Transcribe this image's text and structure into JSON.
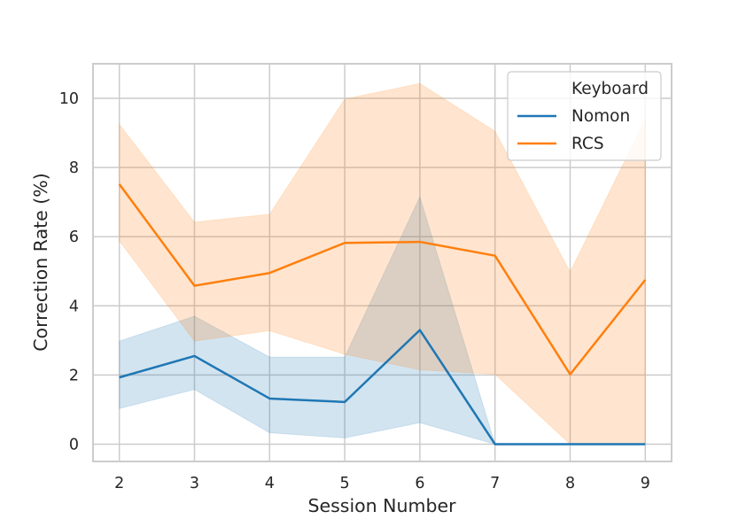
{
  "chart_data": {
    "type": "line",
    "title": "",
    "xlabel": "Session Number",
    "ylabel": "Correction Rate (%)",
    "x": [
      2,
      3,
      4,
      5,
      6,
      7,
      8,
      9
    ],
    "x_ticks": [
      "2",
      "3",
      "4",
      "5",
      "6",
      "7",
      "8",
      "9"
    ],
    "y_ticks": [
      "0",
      "2",
      "4",
      "6",
      "8",
      "10"
    ],
    "xlim": [
      1.65,
      9.35
    ],
    "ylim": [
      -0.5,
      11.0
    ],
    "grid": true,
    "legend": {
      "title": "Keyboard",
      "placement": "top-right"
    },
    "series": [
      {
        "name": "Nomon",
        "color": "#1f77b4",
        "values": [
          1.93,
          2.55,
          1.32,
          1.22,
          3.3,
          0.0,
          0.0,
          0.0
        ],
        "ci_low": [
          1.03,
          1.58,
          0.33,
          0.18,
          0.62,
          0.0,
          0.0,
          0.0
        ],
        "ci_high": [
          2.98,
          3.7,
          2.52,
          2.52,
          7.15,
          0.0,
          0.0,
          0.0
        ]
      },
      {
        "name": "RCS",
        "color": "#ff7f0e",
        "values": [
          7.52,
          4.58,
          4.95,
          5.82,
          5.85,
          5.45,
          2.02,
          4.75
        ],
        "ci_low": [
          5.88,
          2.98,
          3.28,
          2.6,
          2.15,
          2.02,
          0.0,
          0.0
        ],
        "ci_high": [
          9.25,
          6.42,
          6.65,
          9.98,
          10.43,
          9.05,
          4.98,
          9.4
        ]
      }
    ]
  }
}
